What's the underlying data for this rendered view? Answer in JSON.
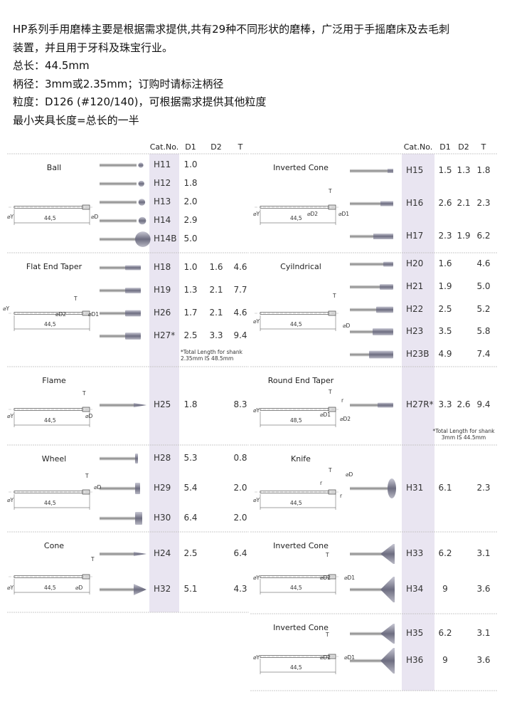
{
  "intro": [
    "HP系列手用磨棒主要是根据需求提供,共有29种不同形状的磨棒，广泛用于手摇磨床及去毛刺",
    "装置，并且用于牙科及珠宝行业。",
    "总长：44.5mm",
    "柄径：3mm或2.35mm；订购时请标注柄径",
    "粒度：D126 (#120/140)，可根据需求提供其他粒度",
    "最小夹具长度=总长的一半"
  ],
  "columns": [
    {
      "headers": [
        "Cat.No.",
        "D1",
        "D2",
        "T"
      ],
      "sections": [
        {
          "title": "Ball",
          "diagram": {
            "labels": [
              "⌀Y",
              "⌀D"
            ],
            "length": "44,5"
          },
          "rows": [
            {
              "cat": "H11",
              "d1": "1.0",
              "d2": null,
              "t": null
            },
            {
              "cat": "H12",
              "d1": "1.8",
              "d2": null,
              "t": null
            },
            {
              "cat": "H13",
              "d1": "2.0",
              "d2": null,
              "t": null
            },
            {
              "cat": "H14",
              "d1": "2.9",
              "d2": null,
              "t": null
            },
            {
              "cat": "H14B",
              "d1": "5.0",
              "d2": null,
              "t": null
            }
          ]
        },
        {
          "title": "Flat End Taper",
          "diagram": {
            "labels": [
              "T",
              "⌀Y",
              "⌀D2",
              "⌀D1"
            ],
            "length": "44,5"
          },
          "rows": [
            {
              "cat": "H18",
              "d1": "1.0",
              "d2": "1.6",
              "t": "4.6"
            },
            {
              "cat": "H19",
              "d1": "1.3",
              "d2": "2.1",
              "t": "7.7"
            },
            {
              "cat": "H26",
              "d1": "1.7",
              "d2": "2.1",
              "t": "4.6"
            },
            {
              "cat": "H27*",
              "d1": "2.5",
              "d2": "3.3",
              "t": "9.4"
            }
          ],
          "note": "*Total Length for shank 2.35mm IS 48.5mm"
        },
        {
          "title": "Flame",
          "diagram": {
            "labels": [
              "T",
              "⌀Y",
              "⌀D"
            ],
            "length": "44,5"
          },
          "rows": [
            {
              "cat": "H25",
              "d1": "1.8",
              "d2": null,
              "t": "8.3"
            }
          ]
        },
        {
          "title": "Wheel",
          "diagram": {
            "labels": [
              "T",
              "⌀Y",
              "⌀D"
            ],
            "length": "44,5"
          },
          "rows": [
            {
              "cat": "H28",
              "d1": "5.3",
              "d2": null,
              "t": "0.8"
            },
            {
              "cat": "H29",
              "d1": "5.4",
              "d2": null,
              "t": "2.0"
            },
            {
              "cat": "H30",
              "d1": "6.4",
              "d2": null,
              "t": "2.0"
            }
          ]
        },
        {
          "title": "Cone",
          "diagram": {
            "labels": [
              "T",
              "⌀Y",
              "⌀D"
            ],
            "length": "44,5"
          },
          "rows": [
            {
              "cat": "H24",
              "d1": "2.5",
              "d2": null,
              "t": "6.4"
            },
            {
              "cat": "H32",
              "d1": "5.1",
              "d2": null,
              "t": "4.3"
            }
          ]
        }
      ]
    },
    {
      "headers": [
        "Cat.No.",
        "D1",
        "D2",
        "T"
      ],
      "sections": [
        {
          "title": "Inverted Cone",
          "diagram": {
            "labels": [
              "T",
              "⌀Y",
              "⌀D2",
              "⌀D1"
            ],
            "length": "44,5"
          },
          "rows": [
            {
              "cat": "H15",
              "d1": "1.5",
              "d2": "1.3",
              "t": "1.8"
            },
            {
              "cat": "H16",
              "d1": "2.6",
              "d2": "2.1",
              "t": "2.3"
            },
            {
              "cat": "H17",
              "d1": "2.3",
              "d2": "1.9",
              "t": "6.2"
            }
          ]
        },
        {
          "title": "Cyilndrical",
          "diagram": {
            "labels": [
              "T",
              "⌀Y",
              "⌀D"
            ],
            "length": "44,5"
          },
          "rows": [
            {
              "cat": "H20",
              "d1": "1.6",
              "d2": null,
              "t": "4.6"
            },
            {
              "cat": "H21",
              "d1": "1.9",
              "d2": null,
              "t": "5.0"
            },
            {
              "cat": "H22",
              "d1": "2.5",
              "d2": null,
              "t": "5.2"
            },
            {
              "cat": "H23",
              "d1": "3.5",
              "d2": null,
              "t": "5.8"
            },
            {
              "cat": "H23B",
              "d1": "4.9",
              "d2": null,
              "t": "7.4"
            }
          ]
        },
        {
          "title": "Round End Taper",
          "diagram": {
            "labels": [
              "T",
              "r",
              "⌀Y",
              "⌀D1",
              "⌀D2"
            ],
            "length": "48,5"
          },
          "rows": [
            {
              "cat": "H27R*",
              "d1": "3.3",
              "d2": "2.6",
              "t": "9.4"
            }
          ],
          "note": "*Total Length for shank 3mm IS 44.5mm"
        },
        {
          "title": "Knife",
          "diagram": {
            "labels": [
              "T",
              "⌀D",
              "r",
              "r",
              "⌀Y"
            ],
            "length": "44,5"
          },
          "rows": [
            {
              "cat": "H31",
              "d1": "6.1",
              "d2": null,
              "t": "2.3"
            }
          ]
        },
        {
          "title": "Inverted Cone",
          "diagram": {
            "labels": [
              "T",
              "⌀Y",
              "⌀D2",
              "⌀D1"
            ],
            "length": "44,5"
          },
          "rows": [
            {
              "cat": "H33",
              "d1": "6.2",
              "d2": null,
              "t": "3.1"
            },
            {
              "cat": "H34",
              "d1": "9",
              "d2": null,
              "t": "3.6"
            }
          ]
        },
        {
          "title": "Inverted Cone",
          "diagram": {
            "labels": [
              "T",
              "⌀Y",
              "⌀D2",
              "⌀D1"
            ],
            "length": "44,5"
          },
          "rows": [
            {
              "cat": "H35",
              "d1": "6.2",
              "d2": null,
              "t": "3.1"
            },
            {
              "cat": "H36",
              "d1": "9",
              "d2": null,
              "t": "3.6"
            }
          ]
        }
      ]
    }
  ]
}
